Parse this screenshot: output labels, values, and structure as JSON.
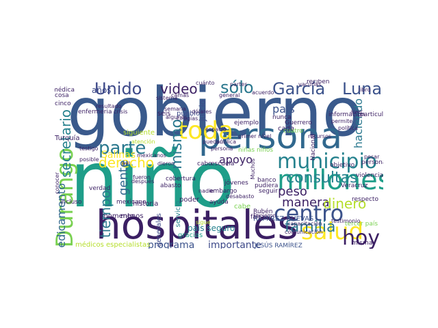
{
  "words": [
    {
      "text": "gobierno",
      "color": "#3a5a8c"
    },
    {
      "text": "niño",
      "color": "#1f9e89"
    },
    {
      "text": "persona",
      "color": "#31688e"
    },
    {
      "text": "hospitales",
      "color": "#3b1f63"
    },
    {
      "text": "Durango",
      "color": "#7ad151"
    },
    {
      "text": "millones",
      "color": "#1f9e89"
    },
    {
      "text": "municipio",
      "color": "#26828e"
    },
    {
      "text": "toda",
      "color": "#fde725"
    },
    {
      "text": "salud",
      "color": "#fde725"
    },
    {
      "text": "centro",
      "color": "#3b528b"
    },
    {
      "text": "García",
      "color": "#3b528b"
    },
    {
      "text": "Luna",
      "color": "#3b528b"
    },
    {
      "text": "Unido",
      "color": "#3e4a89"
    },
    {
      "text": "sólo",
      "color": "#2a788e"
    },
    {
      "text": "parte",
      "color": "#2a788e"
    },
    {
      "text": "hoy",
      "color": "#3b1f63"
    },
    {
      "text": "familia",
      "color": "#2a788e"
    },
    {
      "text": "manera",
      "color": "#3b1f63"
    },
    {
      "text": "dinero",
      "color": "#b5de2b"
    },
    {
      "text": "consultas",
      "color": "#26828e"
    },
    {
      "text": "derecho",
      "color": "#fde725"
    },
    {
      "text": "peso",
      "color": "#3b1f63"
    },
    {
      "text": "video",
      "color": "#3b1f63"
    },
    {
      "text": "apoyo",
      "color": "#3b1f63"
    },
    {
      "text": "mismo",
      "color": "#2a788e"
    },
    {
      "text": "tiempo",
      "color": "#2a788e"
    },
    {
      "text": "secretario",
      "color": "#26828e"
    },
    {
      "text": "haciendo",
      "color": "#2a788e"
    },
    {
      "text": "país",
      "color": "#3b528b"
    },
    {
      "text": "gente",
      "color": "#31688e"
    },
    {
      "text": "medicamento",
      "color": "#31688e"
    },
    {
      "text": "programa",
      "color": "#3b528b"
    },
    {
      "text": "importante",
      "color": "#3e4a89"
    },
    {
      "text": "Salinas",
      "color": "#fde725"
    },
    {
      "text": "años",
      "color": "#3e4a89"
    },
    {
      "text": "juicio",
      "color": "#3e4a89"
    },
    {
      "text": "pueblo",
      "color": "#3e4a89"
    },
    {
      "text": "seis",
      "color": "#3b1f63"
    },
    {
      "text": "cada",
      "color": "#3b1f63"
    },
    {
      "text": "momento",
      "color": "#3b1f63"
    },
    {
      "text": "servicio",
      "color": "#26828e"
    },
    {
      "text": "médicos generales",
      "color": "#3e4a89"
    },
    {
      "text": "médicos especialistas",
      "color": "#b5de2b"
    },
    {
      "text": "violencia",
      "color": "#3b1f63"
    },
    {
      "text": "información",
      "color": "#3b1f63"
    },
    {
      "text": "particular",
      "color": "#3b1f63"
    },
    {
      "text": "personal",
      "color": "#3b1f63"
    },
    {
      "text": "tercer país",
      "color": "#7ad151"
    },
    {
      "text": "respecto",
      "color": "#3b1f63"
    },
    {
      "text": "misma",
      "color": "#3b1f63"
    },
    {
      "text": "Turquía",
      "color": "#3b1f63"
    },
    {
      "text": "siguiente",
      "color": "#b5de2b"
    },
    {
      "text": "incluso",
      "color": "#3b1f63"
    },
    {
      "text": "mexicano",
      "color": "#3b1f63"
    },
    {
      "text": "país seguro",
      "color": "#26828e"
    },
    {
      "text": "JESÚS RAMÍREZ",
      "color": "#3b528b"
    },
    {
      "text": "RAMÍREZ CUEVAS",
      "color": "#3b528b"
    },
    {
      "text": "cabe",
      "color": "#7ad151"
    },
    {
      "text": "historia",
      "color": "#3b1f63"
    },
    {
      "text": "poder",
      "color": "#3b1f63"
    },
    {
      "text": "menos",
      "color": "#3b1f63"
    },
    {
      "text": "gracias",
      "color": "#1f9e89"
    },
    {
      "text": "cuatro",
      "color": "#7ad151"
    },
    {
      "text": "Guerrero",
      "color": "#3b1f63"
    },
    {
      "text": "ayuda",
      "color": "#3b1f63"
    },
    {
      "text": "embargo",
      "color": "#3b1f63"
    },
    {
      "text": "escuela",
      "color": "#3b1f63"
    },
    {
      "text": "cabo",
      "color": "#3b1f63"
    },
    {
      "text": "jóvenes",
      "color": "#3b1f63"
    },
    {
      "text": "Rubén",
      "color": "#3b1f63"
    },
    {
      "text": "falta",
      "color": "#3b1f63"
    },
    {
      "text": "cobertura",
      "color": "#3b1f63"
    },
    {
      "text": "abasto",
      "color": "#3b1f63"
    },
    {
      "text": "Nacional",
      "color": "#3b1f63"
    },
    {
      "text": "objetivo",
      "color": "#3b1f63"
    },
    {
      "text": "médica",
      "color": "#3b1f63"
    },
    {
      "text": "cosa",
      "color": "#3b1f63"
    },
    {
      "text": "cinco",
      "color": "#3b1f63"
    },
    {
      "text": "enfermeria",
      "color": "#3b1f63"
    },
    {
      "text": "verdad",
      "color": "#3b1f63"
    },
    {
      "text": "casos",
      "color": "#3b1f63"
    },
    {
      "text": "recursos",
      "color": "#3b1f63"
    },
    {
      "text": "nunca",
      "color": "#3b1f63"
    },
    {
      "text": "reciben",
      "color": "#3b1f63"
    },
    {
      "text": "ejemplo",
      "color": "#3b1f63"
    },
    {
      "text": "cuánto",
      "color": "#3b1f63"
    },
    {
      "text": "semana",
      "color": "#3b1f63"
    },
    {
      "text": "cirugías",
      "color": "#3b1f63"
    },
    {
      "text": "Veracruz",
      "color": "#3b1f63"
    },
    {
      "text": "banco",
      "color": "#3b1f63"
    },
    {
      "text": "pudiera",
      "color": "#3b1f63"
    },
    {
      "text": "seguir",
      "color": "#3b1f63"
    },
    {
      "text": "comunicación",
      "color": "#3b1f63"
    },
    {
      "text": "capacitación",
      "color": "#3b1f63"
    },
    {
      "text": "testimonio",
      "color": "#3b1f63"
    },
    {
      "text": "permite",
      "color": "#3b1f63"
    },
    {
      "text": "política",
      "color": "#3b1f63"
    },
    {
      "text": "libro",
      "color": "#3b1f63"
    },
    {
      "text": "primer nivel",
      "color": "#3b1f63"
    },
    {
      "text": "niñas niños",
      "color": "#7ad151"
    },
    {
      "text": "persona",
      "color": "#3b1f63"
    },
    {
      "text": "puedan",
      "color": "#3b1f63"
    },
    {
      "text": "mexicanos",
      "color": "#3b1f63"
    },
    {
      "text": "después",
      "color": "#3b1f63"
    },
    {
      "text": "algunos",
      "color": "#3b1f63"
    },
    {
      "text": "Muchos",
      "color": "#3b1f63"
    },
    {
      "text": "Fucieron",
      "color": "#3b1f63"
    },
    {
      "text": "pesar",
      "color": "#3b1f63"
    },
    {
      "text": "posible",
      "color": "#3b1f63"
    },
    {
      "text": "testigo",
      "color": "#3b1f63"
    },
    {
      "text": "conocer",
      "color": "#3b1f63"
    },
    {
      "text": "atención",
      "color": "#b5de2b"
    },
    {
      "text": "mil",
      "color": "#3b1f63"
    },
    {
      "text": "fueron",
      "color": "#3b1f63"
    },
    {
      "text": "sigue",
      "color": "#b5de2b"
    },
    {
      "text": "dieron",
      "color": "#3b1f63"
    },
    {
      "text": "ayer",
      "color": "#3b1f63"
    },
    {
      "text": "partes",
      "color": "#3b1f63"
    },
    {
      "text": "crisis",
      "color": "#3b1f63"
    },
    {
      "text": "espacio",
      "color": "#3b1f63"
    },
    {
      "text": "resultado",
      "color": "#3b1f63"
    },
    {
      "text": "dólares",
      "color": "#3b1f63"
    },
    {
      "text": "vacunas",
      "color": "#3b1f63"
    },
    {
      "text": "pública",
      "color": "#3b1f63"
    },
    {
      "text": "nadie",
      "color": "#3b1f63"
    },
    {
      "text": "general",
      "color": "#3b1f63"
    },
    {
      "text": "sistema",
      "color": "#3b1f63"
    },
    {
      "text": "acuerdo",
      "color": "#3b1f63"
    },
    {
      "text": "camas",
      "color": "#3b1f63"
    },
    {
      "text": "desabasto",
      "color": "#3b1f63"
    }
  ]
}
